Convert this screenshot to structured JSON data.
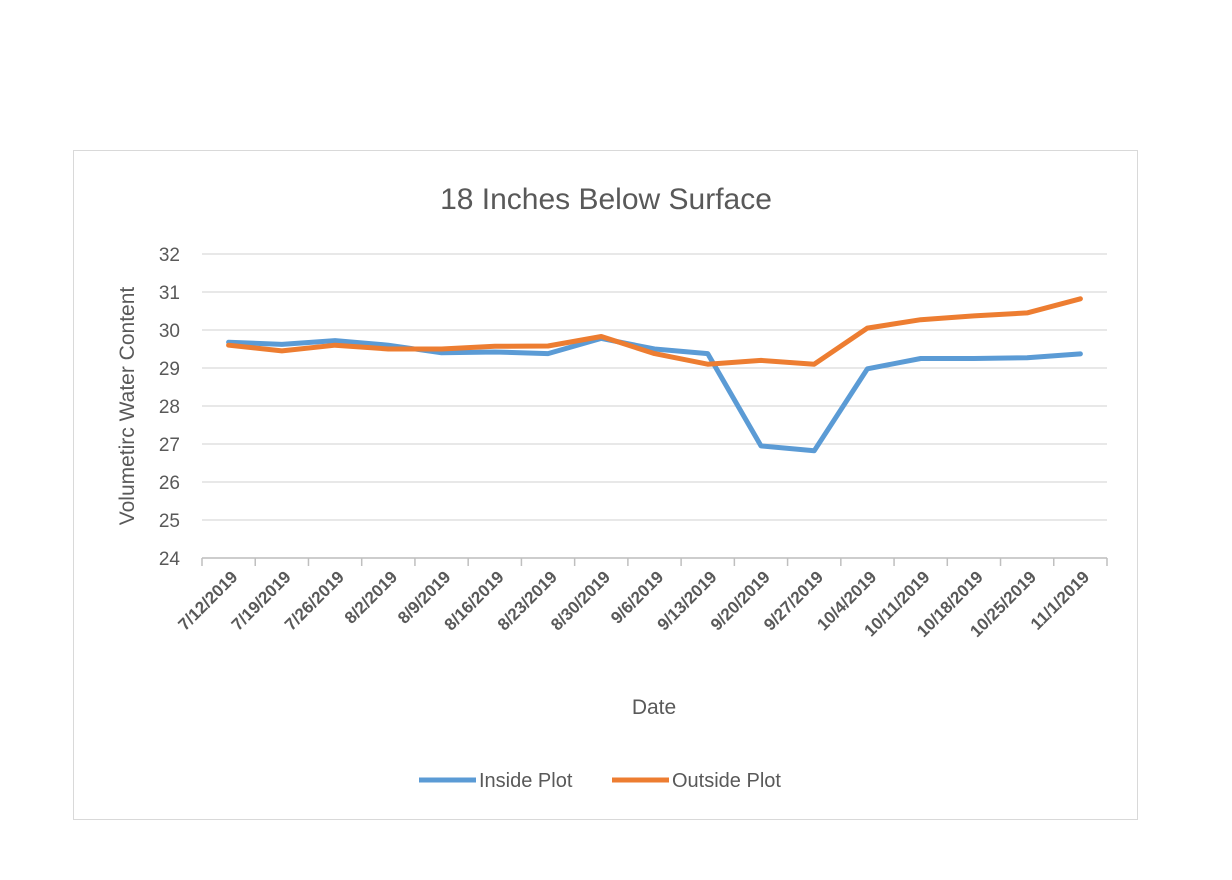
{
  "chart_data": {
    "type": "line",
    "title": "18  Inches Below Surface",
    "xlabel": "Date",
    "ylabel": "Volumetirc Water Content",
    "ylim": [
      24,
      32
    ],
    "yticks": [
      24,
      25,
      26,
      27,
      28,
      29,
      30,
      31,
      32
    ],
    "grid": true,
    "legend_position": "bottom",
    "categories": [
      "7/12/2019",
      "7/19/2019",
      "7/26/2019",
      "8/2/2019",
      "8/9/2019",
      "8/16/2019",
      "8/23/2019",
      "8/30/2019",
      "9/6/2019",
      "9/13/2019",
      "9/20/2019",
      "9/27/2019",
      "10/4/2019",
      "10/11/2019",
      "10/18/2019",
      "10/25/2019",
      "11/1/2019"
    ],
    "series": [
      {
        "name": "Inside Plot",
        "color": "#5b9bd5",
        "values": [
          29.68,
          29.62,
          29.72,
          29.6,
          29.4,
          29.42,
          29.38,
          29.78,
          29.5,
          29.38,
          26.95,
          26.82,
          28.98,
          29.25,
          29.25,
          29.27,
          29.37
        ]
      },
      {
        "name": "Outside Plot",
        "color": "#ed7d31",
        "values": [
          29.6,
          29.45,
          29.6,
          29.5,
          29.5,
          29.57,
          29.58,
          29.83,
          29.38,
          29.1,
          29.2,
          29.1,
          30.05,
          30.27,
          30.37,
          30.45,
          30.82
        ]
      }
    ]
  }
}
